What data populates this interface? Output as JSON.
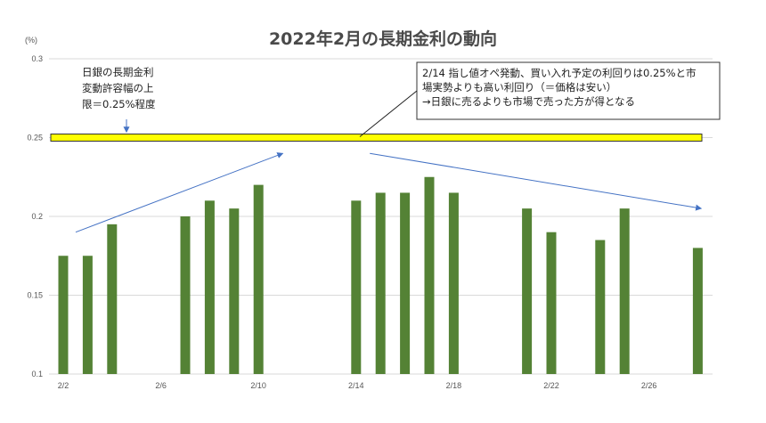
{
  "chart_data": {
    "type": "bar",
    "title": "2022年2月の長期金利の動向",
    "ylabel": "(%)",
    "xlabel": "",
    "ylim": [
      0.1,
      0.3
    ],
    "yticks": [
      "0.1",
      "0.15",
      "0.2",
      "0.25",
      "0.3"
    ],
    "x_axis": {
      "start": "2/2",
      "end": "2/28",
      "tick_labels": [
        "2/2",
        "2/6",
        "2/10",
        "2/14",
        "2/18",
        "2/22",
        "2/26"
      ]
    },
    "bar_color": "#548235",
    "grid": "horizontal",
    "series": [
      {
        "values": [
          {
            "date": "2/2",
            "value": 0.175
          },
          {
            "date": "2/3",
            "value": 0.175
          },
          {
            "date": "2/4",
            "value": 0.195
          },
          {
            "date": "2/7",
            "value": 0.2
          },
          {
            "date": "2/8",
            "value": 0.21
          },
          {
            "date": "2/9",
            "value": 0.205
          },
          {
            "date": "2/10",
            "value": 0.22
          },
          {
            "date": "2/14",
            "value": 0.21
          },
          {
            "date": "2/15",
            "value": 0.215
          },
          {
            "date": "2/16",
            "value": 0.215
          },
          {
            "date": "2/17",
            "value": 0.225
          },
          {
            "date": "2/18",
            "value": 0.215
          },
          {
            "date": "2/21",
            "value": 0.205
          },
          {
            "date": "2/22",
            "value": 0.19
          },
          {
            "date": "2/24",
            "value": 0.185
          },
          {
            "date": "2/25",
            "value": 0.205
          },
          {
            "date": "2/28",
            "value": 0.18
          }
        ]
      }
    ],
    "reference_band": {
      "value": 0.25,
      "fill": "#ffff00",
      "stroke": "#333333"
    },
    "trend_arrows": [
      {
        "from": {
          "date": "2/2",
          "value": 0.19
        },
        "to": {
          "date": "2/11",
          "value": 0.24
        }
      },
      {
        "from": {
          "date": "2/15",
          "value": 0.24
        },
        "to": {
          "date": "2/28",
          "value": 0.205
        }
      }
    ],
    "arrow_color": "#4472c4",
    "annotations": {
      "left_note": {
        "lines": [
          "日銀の長期金利",
          "変動許容幅の上",
          "限＝0.25%程度"
        ],
        "points_to": "reference_band"
      },
      "callout": {
        "lines": [
          "2/14 指し値オペ発動、買い入れ予定の利回りは0.25%と市",
          "場実勢よりも高い利回り（＝価格は安い）",
          "→日銀に売るよりも市場で売った方が得となる"
        ],
        "points_to": "reference_band"
      }
    }
  }
}
